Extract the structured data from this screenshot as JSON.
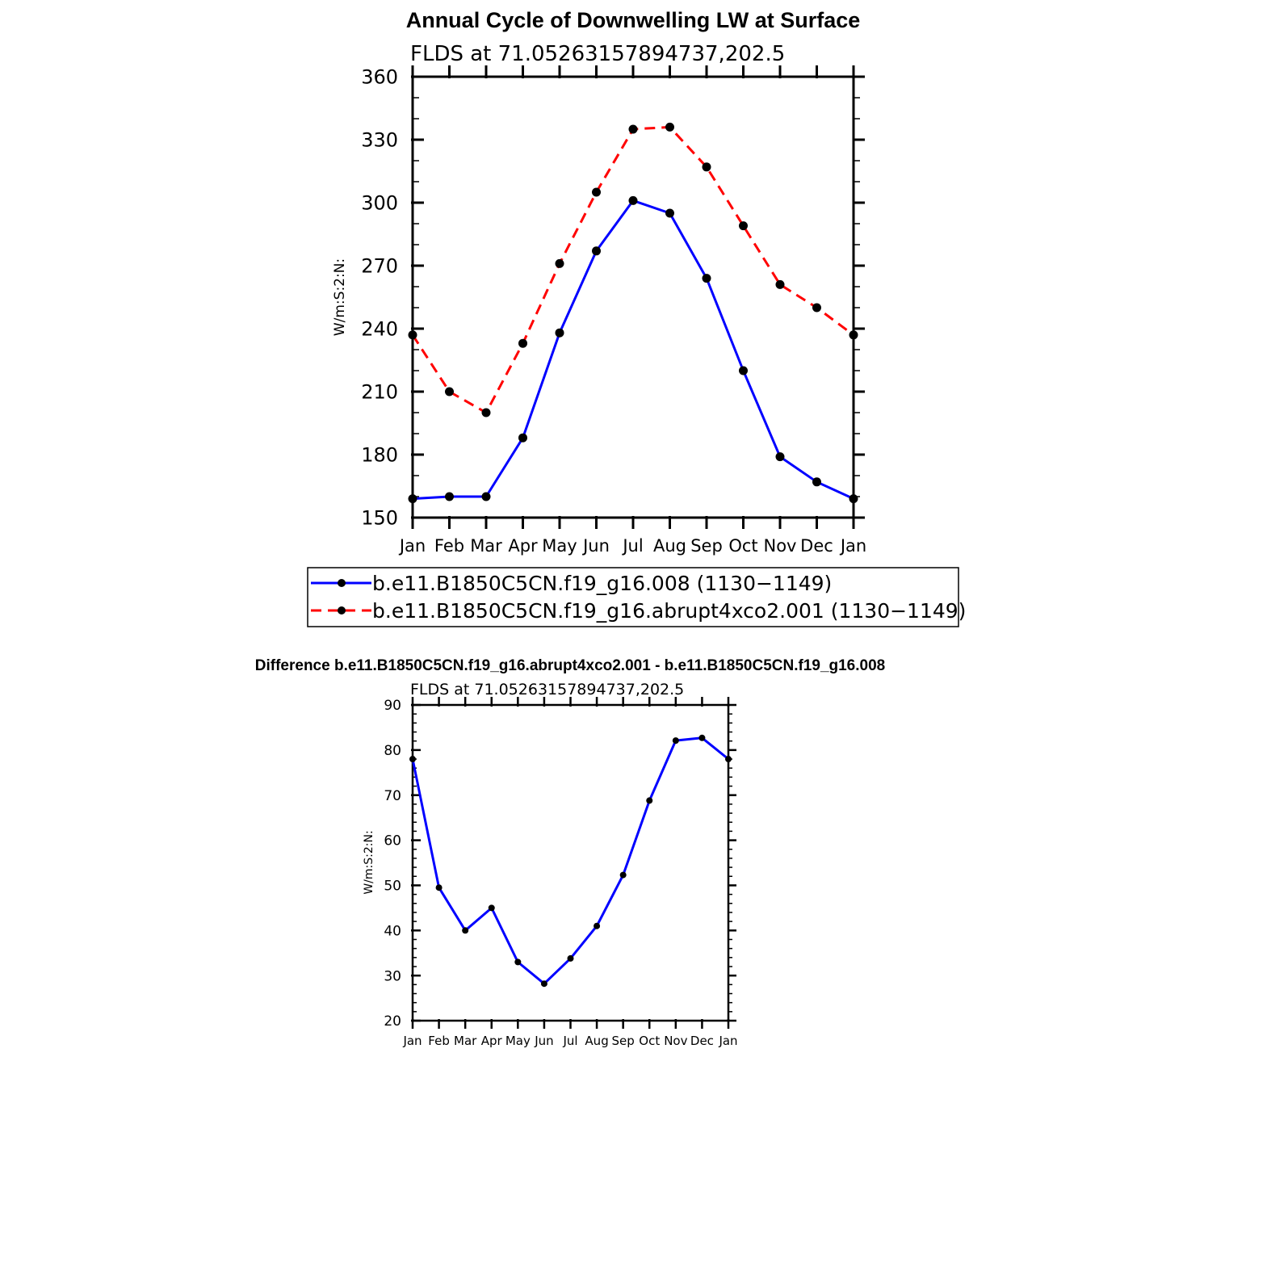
{
  "colors": {
    "control": "#0000ff",
    "experiment": "#ff0000",
    "difference": "#0000ff",
    "marker": "#000000",
    "axis": "#000000"
  },
  "chart_data": [
    {
      "type": "line",
      "title": "Annual Cycle of Downwelling LW at Surface",
      "subtitle": "FLDS at 71.05263157894737,202.5",
      "xlabel": "",
      "ylabel": "W/m:S:2:N:",
      "categories": [
        "Jan",
        "Feb",
        "Mar",
        "Apr",
        "May",
        "Jun",
        "Jul",
        "Aug",
        "Sep",
        "Oct",
        "Nov",
        "Dec",
        "Jan"
      ],
      "ylim": [
        150,
        360
      ],
      "yticks": [
        150,
        180,
        210,
        240,
        270,
        300,
        330,
        360
      ],
      "yminor_step": 10,
      "legend_position": "below",
      "series": [
        {
          "name": "b.e11.B1850C5CN.f19_g16.008 (1130−1149)",
          "style": "solid",
          "values": [
            159,
            160,
            160,
            188,
            238,
            277,
            301,
            295,
            264,
            220,
            179,
            167,
            159
          ]
        },
        {
          "name": "b.e11.B1850C5CN.f19_g16.abrupt4xco2.001 (1130−1149)",
          "style": "dashed",
          "values": [
            237,
            210,
            200,
            233,
            271,
            305,
            335,
            336,
            317,
            289,
            261,
            250,
            237
          ]
        }
      ]
    },
    {
      "type": "line",
      "title": "Difference b.e11.B1850C5CN.f19_g16.abrupt4xco2.001 - b.e11.B1850C5CN.f19_g16.008",
      "subtitle": "FLDS at 71.05263157894737,202.5",
      "xlabel": "",
      "ylabel": "W/m:S:2:N:",
      "categories": [
        "Jan",
        "Feb",
        "Mar",
        "Apr",
        "May",
        "Jun",
        "Jul",
        "Aug",
        "Sep",
        "Oct",
        "Nov",
        "Dec",
        "Jan"
      ],
      "ylim": [
        20,
        90
      ],
      "yticks": [
        20,
        30,
        40,
        50,
        60,
        70,
        80,
        90
      ],
      "yminor_step": 2,
      "series": [
        {
          "name": "difference",
          "style": "solid",
          "values": [
            78,
            49.5,
            40,
            45,
            33,
            28.2,
            33.8,
            41,
            52.3,
            68.8,
            82.1,
            82.7,
            78
          ]
        }
      ]
    }
  ]
}
